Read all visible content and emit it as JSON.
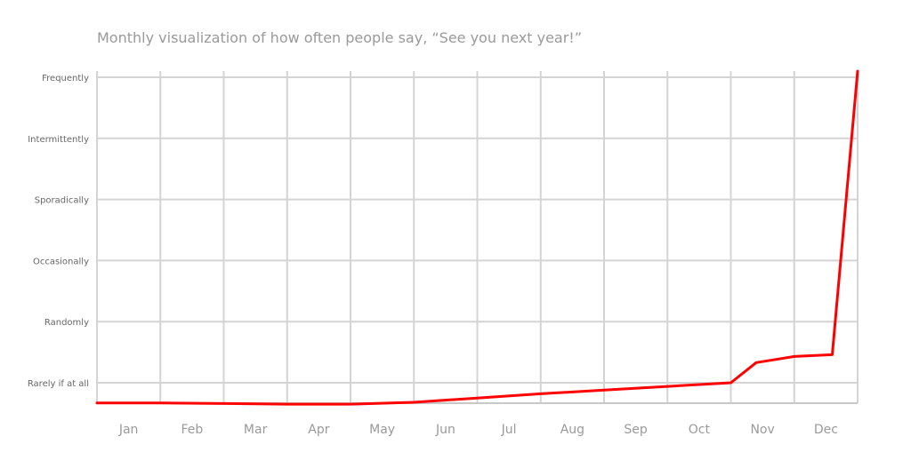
{
  "chart_data": {
    "type": "line",
    "title": "Monthly visualization of how often people say, “See you next year!”",
    "xlabel": "",
    "ylabel": "",
    "categories": [
      "Jan",
      "Feb",
      "Mar",
      "Apr",
      "May",
      "Jun",
      "Jul",
      "Aug",
      "Sep",
      "Oct",
      "Nov",
      "Dec"
    ],
    "y_levels": [
      "Rarely if at all",
      "Randomly",
      "Occasionally",
      "Sporadically",
      "Intermittently",
      "Frequently"
    ],
    "x_range": [
      0,
      12
    ],
    "y_range": [
      -0.33,
      5.1
    ],
    "grid": true,
    "legend": "none",
    "series": [
      {
        "color": "#ff0000",
        "points": [
          {
            "x": 0.0,
            "y": -0.33
          },
          {
            "x": 1.0,
            "y": -0.33
          },
          {
            "x": 2.0,
            "y": -0.34
          },
          {
            "x": 3.0,
            "y": -0.35
          },
          {
            "x": 4.0,
            "y": -0.35
          },
          {
            "x": 5.0,
            "y": -0.32
          },
          {
            "x": 6.0,
            "y": -0.25
          },
          {
            "x": 7.0,
            "y": -0.18
          },
          {
            "x": 8.0,
            "y": -0.12
          },
          {
            "x": 9.0,
            "y": -0.06
          },
          {
            "x": 10.0,
            "y": 0.0
          },
          {
            "x": 10.4,
            "y": 0.33
          },
          {
            "x": 11.0,
            "y": 0.43
          },
          {
            "x": 11.6,
            "y": 0.46
          },
          {
            "x": 12.0,
            "y": 5.1
          }
        ]
      }
    ]
  }
}
